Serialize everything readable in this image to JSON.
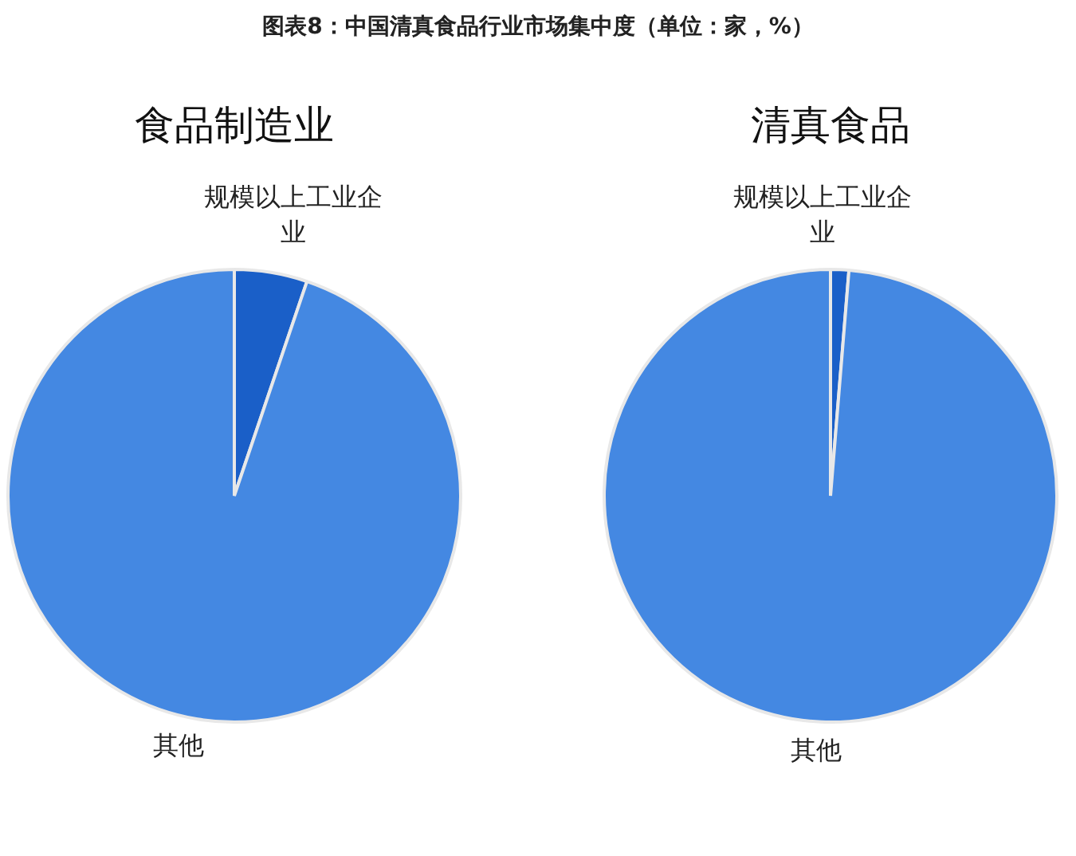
{
  "chart_data": [
    {
      "type": "pie",
      "title": "食品制造业",
      "annotations": [
        "图表8：中国清真食品行业市场集中度（单位：家，%）"
      ],
      "categories": [
        "规模以上工业企业",
        "其他"
      ],
      "values": [
        5.2,
        94.8
      ],
      "colors": [
        "#1a5fc8",
        "#4488e2"
      ],
      "legend": false
    },
    {
      "type": "pie",
      "title": "清真食品",
      "categories": [
        "规模以上工业企业",
        "其他"
      ],
      "values": [
        1.3,
        98.7
      ],
      "colors": [
        "#1a5fc8",
        "#4488e2"
      ],
      "legend": false
    }
  ]
}
